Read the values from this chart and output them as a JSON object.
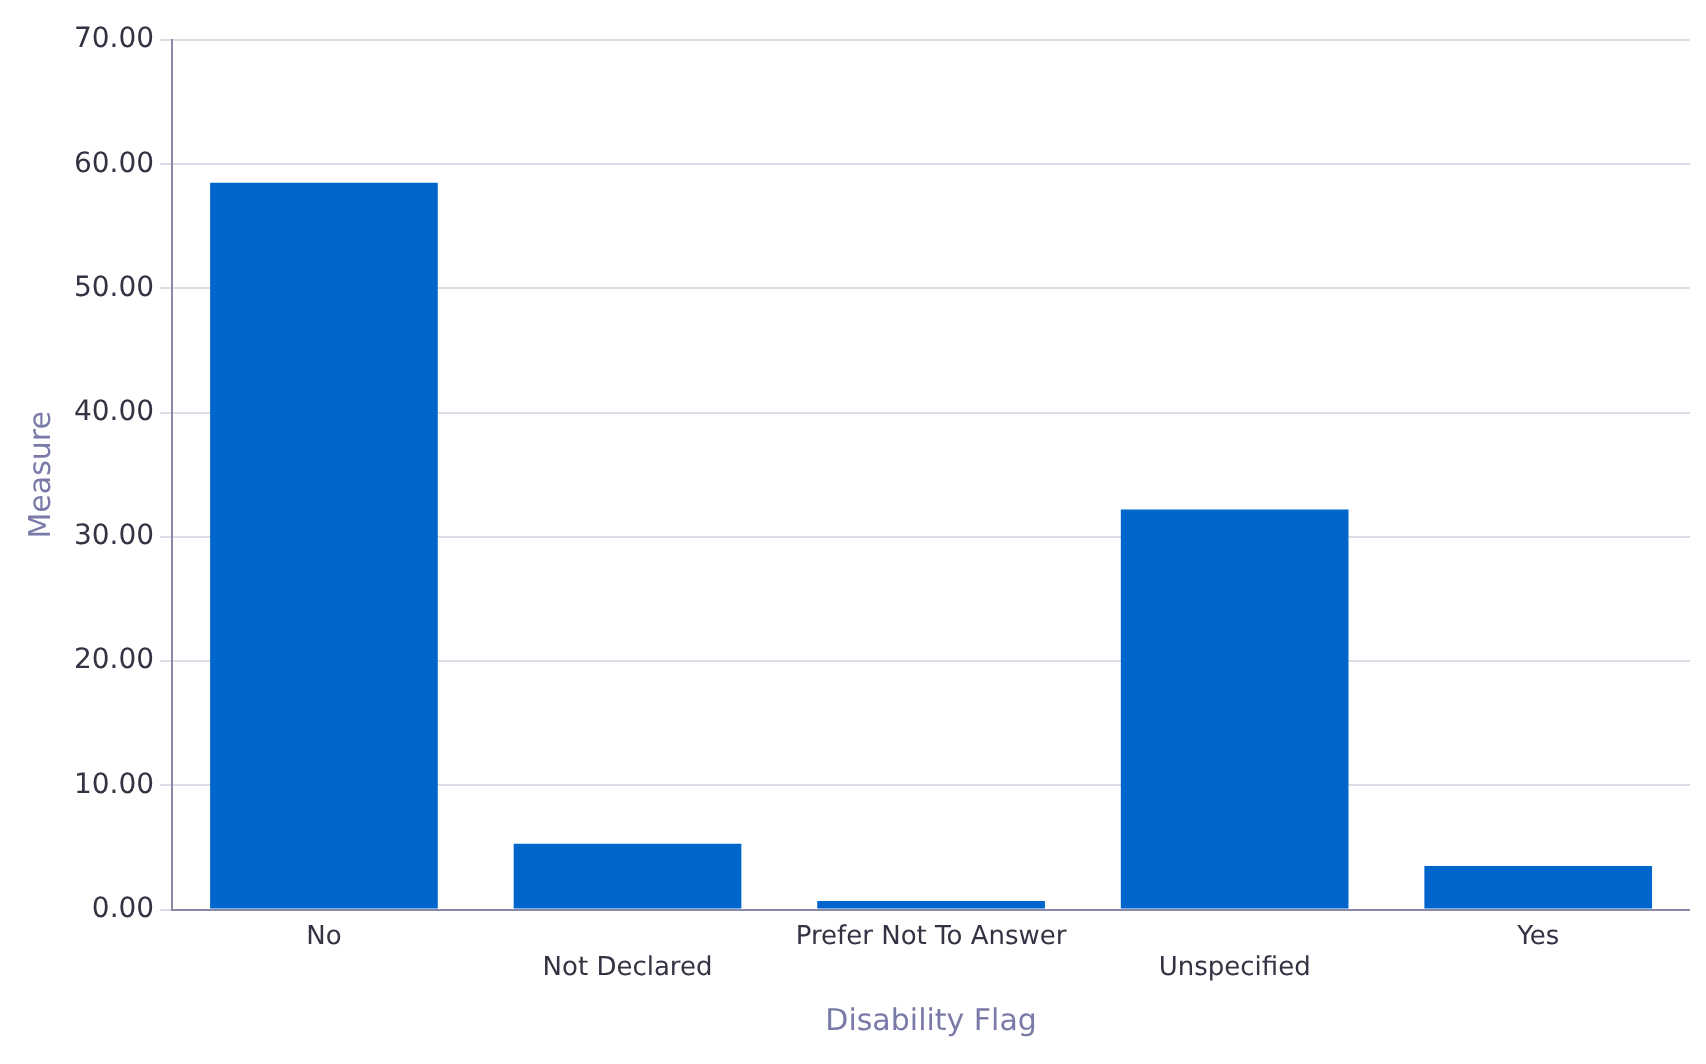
{
  "chart_data": {
    "type": "bar",
    "xlabel": "Disability Flag",
    "ylabel": "Measure",
    "categories": [
      "No",
      "Not Declared",
      "Prefer Not To Answer",
      "Unspecified",
      "Yes"
    ],
    "values": [
      58.5,
      5.3,
      0.7,
      32.2,
      3.5
    ],
    "color": "#0066cc",
    "ylim": [
      0,
      70
    ],
    "yticks": [
      {
        "value": 0,
        "label": "0.00"
      },
      {
        "value": 10,
        "label": "10.00"
      },
      {
        "value": 20,
        "label": "20.00"
      },
      {
        "value": 30,
        "label": "30.00"
      },
      {
        "value": 40,
        "label": "40.00"
      },
      {
        "value": 50,
        "label": "50.00"
      },
      {
        "value": 60,
        "label": "60.00"
      },
      {
        "value": 70,
        "label": "70.00"
      }
    ],
    "grid": "y",
    "legend": false
  }
}
